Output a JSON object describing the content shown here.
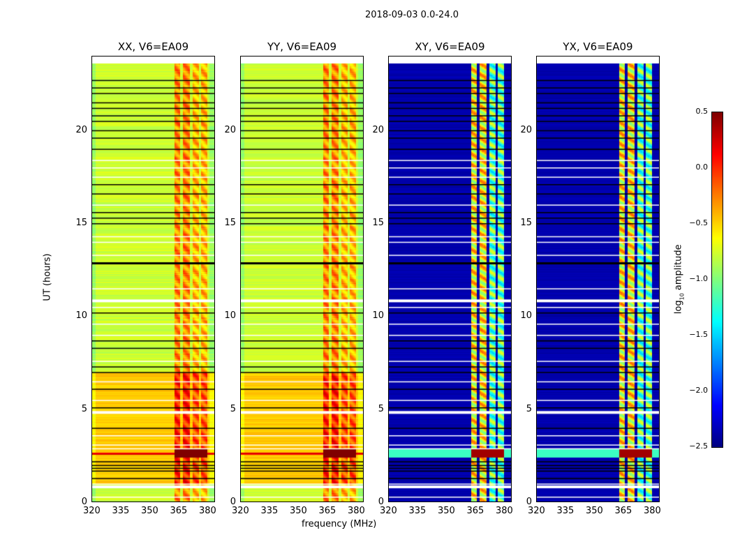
{
  "chart_data": {
    "type": "heatmap",
    "title": "2018-09-03 0.0-24.0",
    "xlabel": "frequency (MHz)",
    "ylabel": "UT (hours)",
    "xlim": [
      320,
      384
    ],
    "ylim": [
      0,
      24
    ],
    "xticks": [
      "320",
      "335",
      "350",
      "365",
      "380"
    ],
    "yticks": [
      "0",
      "5",
      "10",
      "15",
      "20"
    ],
    "panels": [
      {
        "title": "XX, V6=EA09",
        "kind": "parallel"
      },
      {
        "title": "YY, V6=EA09",
        "kind": "parallel"
      },
      {
        "title": "XY, V6=EA09",
        "kind": "cross"
      },
      {
        "title": "YX, V6=EA09",
        "kind": "cross"
      }
    ],
    "colorbar": {
      "label_prefix": "log",
      "label_sub": "10",
      "label_suffix": " amplitude",
      "range": [
        -2.5,
        0.5
      ],
      "ticks": [
        "0.5",
        "0.0",
        "−0.5",
        "−1.0",
        "−1.5",
        "−2.0",
        "−2.5"
      ],
      "colormap": "jet"
    }
  }
}
